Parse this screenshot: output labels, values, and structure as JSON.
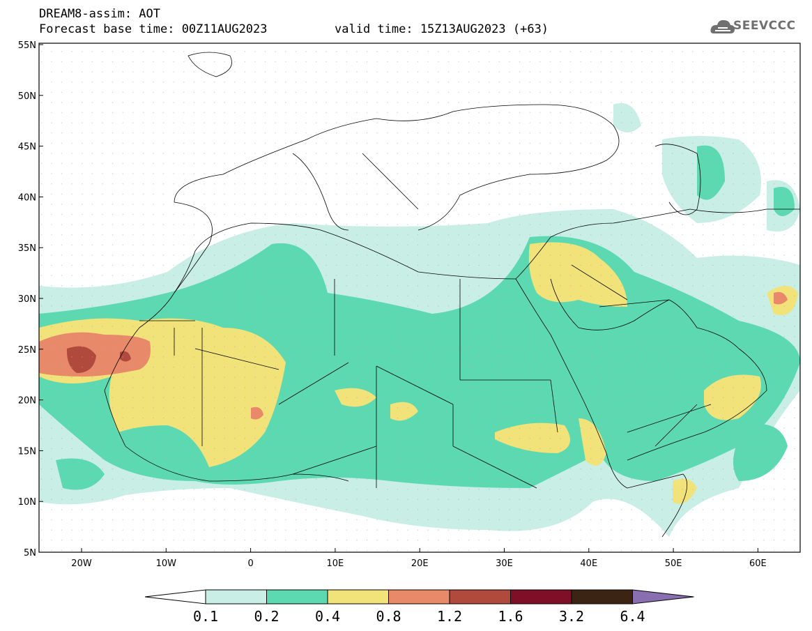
{
  "title": {
    "line1": "DREAM8-assim: AOT",
    "line2": "Forecast base time: 00Z11AUG2023",
    "valid": "valid time: 15Z13AUG2023 (+63)"
  },
  "logo": {
    "text": "SEEVCCC",
    "icon": "cloud-icon"
  },
  "axes": {
    "lat_labels": [
      "55N",
      "50N",
      "45N",
      "40N",
      "35N",
      "30N",
      "25N",
      "20N",
      "15N",
      "10N",
      "5N"
    ],
    "lon_labels": [
      "20W",
      "10W",
      "0",
      "10E",
      "20E",
      "30E",
      "40E",
      "50E",
      "60E"
    ]
  },
  "colorbar": {
    "labels": [
      "0.1",
      "0.2",
      "0.4",
      "0.8",
      "1.2",
      "1.6",
      "3.2",
      "6.4"
    ],
    "colors": [
      "#c9eee6",
      "#5cd9b0",
      "#f2e27a",
      "#e8896a",
      "#b04a3c",
      "#7e0f26",
      "#3b2414",
      "#8a6fb0"
    ]
  }
}
